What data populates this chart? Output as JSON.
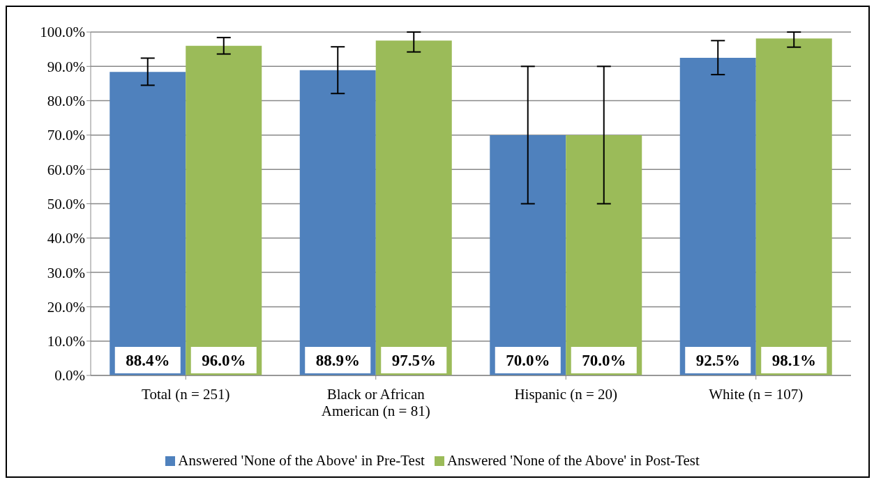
{
  "chart_data": {
    "type": "bar",
    "categories": [
      "Total (n = 251)",
      "Black or African American (n = 81)",
      "Hispanic (n = 20)",
      "White (n = 107)"
    ],
    "series": [
      {
        "name": "Answered 'None of the Above' in Pre-Test",
        "color": "#4f81bd",
        "values": [
          88.4,
          88.9,
          70.0,
          92.5
        ],
        "value_labels": [
          "88.4%",
          "88.9%",
          "70.0%",
          "92.5%"
        ],
        "errors": [
          [
            84.5,
            92.4
          ],
          [
            82.1,
            95.7
          ],
          [
            50,
            90
          ],
          [
            87.6,
            97.5
          ]
        ]
      },
      {
        "name": "Answered 'None of the Above' in Post-Test",
        "color": "#9bbb59",
        "values": [
          96.0,
          97.5,
          70.0,
          98.1
        ],
        "value_labels": [
          "96.0%",
          "97.5%",
          "70.0%",
          "98.1%"
        ],
        "errors": [
          [
            93.6,
            98.4
          ],
          [
            94.2,
            100
          ],
          [
            50,
            90
          ],
          [
            95.6,
            100
          ]
        ]
      }
    ],
    "ylim": [
      0,
      100
    ],
    "yticks": [
      {
        "value": 0,
        "label": "0.0%"
      },
      {
        "value": 10,
        "label": "10.0%"
      },
      {
        "value": 20,
        "label": "20.0%"
      },
      {
        "value": 30,
        "label": "30.0%"
      },
      {
        "value": 40,
        "label": "40.0%"
      },
      {
        "value": 50,
        "label": "50.0%"
      },
      {
        "value": 60,
        "label": "60.0%"
      },
      {
        "value": 70,
        "label": "70.0%"
      },
      {
        "value": 80,
        "label": "80.0%"
      },
      {
        "value": 90,
        "label": "90.0%"
      },
      {
        "value": 100,
        "label": "100.0%"
      }
    ],
    "grid": "y",
    "legend": "bottom"
  }
}
